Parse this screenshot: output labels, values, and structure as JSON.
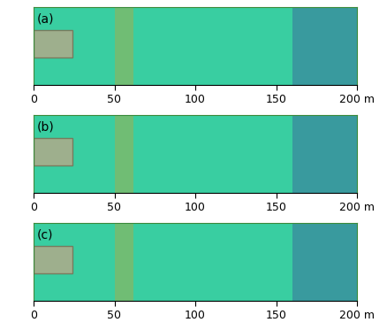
{
  "chart_data": [
    {
      "type": "field",
      "label": "(a)",
      "xlim": [
        0,
        200
      ],
      "xticks": [
        0,
        50,
        100,
        150,
        {
          "value": 200,
          "label": "200 m"
        }
      ],
      "tick_labels": "x"
    },
    {
      "type": "field",
      "label": "(b)",
      "xlim": [
        0,
        200
      ],
      "xticks": [
        0,
        50,
        100,
        150,
        {
          "value": 200,
          "label": "200 m"
        }
      ],
      "tick_labels": "x"
    },
    {
      "type": "field",
      "label": "(c)",
      "xlim": [
        0,
        200
      ],
      "xticks": [
        0,
        50,
        100,
        150,
        {
          "value": 200,
          "label": "200 m"
        }
      ],
      "tick_labels": "x"
    }
  ]
}
